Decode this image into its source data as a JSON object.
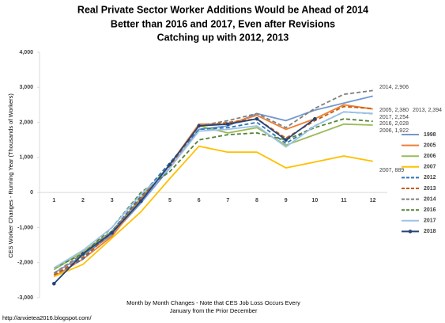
{
  "chart_data": {
    "type": "line",
    "title": [
      "Real Private Sector Worker  Additions Would be Ahead of 2014",
      "Better than 2016 and 2017, Even after Revisions",
      "Catching up with 2012, 2013"
    ],
    "y_label": "CES Worker Changes - Running Year (Thousands of Workers)",
    "x_label": [
      "Month by Month Changes - Note that CES Job Loss Occurs Every",
      "January from the Prior December"
    ],
    "footer": "http://anxietea2016.blogspot.com/",
    "categories": [
      "1",
      "2",
      "3",
      "4",
      "5",
      "6",
      "7",
      "8",
      "9",
      "10",
      "11",
      "12"
    ],
    "ylim": [
      -3000,
      4000
    ],
    "yticks": [
      {
        "value": -3000,
        "label": "-3,000"
      },
      {
        "value": -2000,
        "label": "-2,000"
      },
      {
        "value": -1000,
        "label": "-1,000"
      },
      0,
      {
        "value": 1000,
        "label": "1,000"
      },
      {
        "value": 2000,
        "label": "2,000"
      },
      {
        "value": 3000,
        "label": "3,000"
      },
      {
        "value": 4000,
        "label": "4,000"
      }
    ],
    "legend": "right",
    "series": [
      {
        "name": "1998",
        "color": "#7399cf",
        "dash": false,
        "values": [
          -2300,
          -1800,
          -1200,
          -300,
          700,
          1800,
          1900,
          2250,
          2050,
          2350,
          2550,
          2750
        ]
      },
      {
        "name": "2005",
        "color": "#ed7d31",
        "dash": false,
        "values": [
          -2400,
          -1900,
          -1250,
          -200,
          800,
          1950,
          1950,
          2200,
          1800,
          2100,
          2500,
          2380
        ]
      },
      {
        "name": "2006",
        "color": "#9bbb59",
        "dash": false,
        "values": [
          -2200,
          -1700,
          -1100,
          -150,
          800,
          1900,
          1700,
          1850,
          1350,
          1650,
          1950,
          1922
        ]
      },
      {
        "name": "2007",
        "color": "#ffc000",
        "dash": false,
        "values": [
          -2400,
          -2050,
          -1300,
          -550,
          400,
          1320,
          1150,
          1150,
          700,
          870,
          1040,
          889
        ]
      },
      {
        "name": "2012",
        "color": "#2e75b6",
        "dash": true,
        "values": [
          -2350,
          -1900,
          -1100,
          -100,
          850,
          1800,
          1850,
          2000,
          1400,
          1900,
          2300,
          2250
        ]
      },
      {
        "name": "2013",
        "color": "#c55a11",
        "dash": true,
        "values": [
          -2350,
          -1850,
          -1150,
          -150,
          750,
          1900,
          2000,
          2100,
          1550,
          2050,
          2450,
          2394
        ]
      },
      {
        "name": "2014",
        "color": "#7f7f7f",
        "dash": true,
        "values": [
          -2300,
          -1750,
          -1100,
          -200,
          800,
          1900,
          2050,
          2250,
          1850,
          2400,
          2800,
          2906
        ]
      },
      {
        "name": "2016",
        "color": "#548235",
        "dash": true,
        "values": [
          -2150,
          -1750,
          -1000,
          0,
          600,
          1500,
          1650,
          1700,
          1500,
          1850,
          2100,
          2028
        ]
      },
      {
        "name": "2017",
        "color": "#9dc3e6",
        "dash": false,
        "values": [
          -2150,
          -1650,
          -1000,
          -50,
          700,
          1750,
          1800,
          1900,
          1300,
          1900,
          2300,
          2254
        ]
      },
      {
        "name": "2018",
        "color": "#264478",
        "dash": false,
        "marker": true,
        "values": [
          -2600,
          -1750,
          -1150,
          -250,
          800,
          1900,
          1950,
          2100,
          1500,
          2100,
          null,
          null
        ]
      }
    ],
    "annotations": [
      "2014, 2,906",
      "2005, 2,380",
      "2013, 2,394",
      "2017, 2,254",
      "2016, 2,028",
      "2006, 1,922",
      "2007, 889"
    ]
  }
}
